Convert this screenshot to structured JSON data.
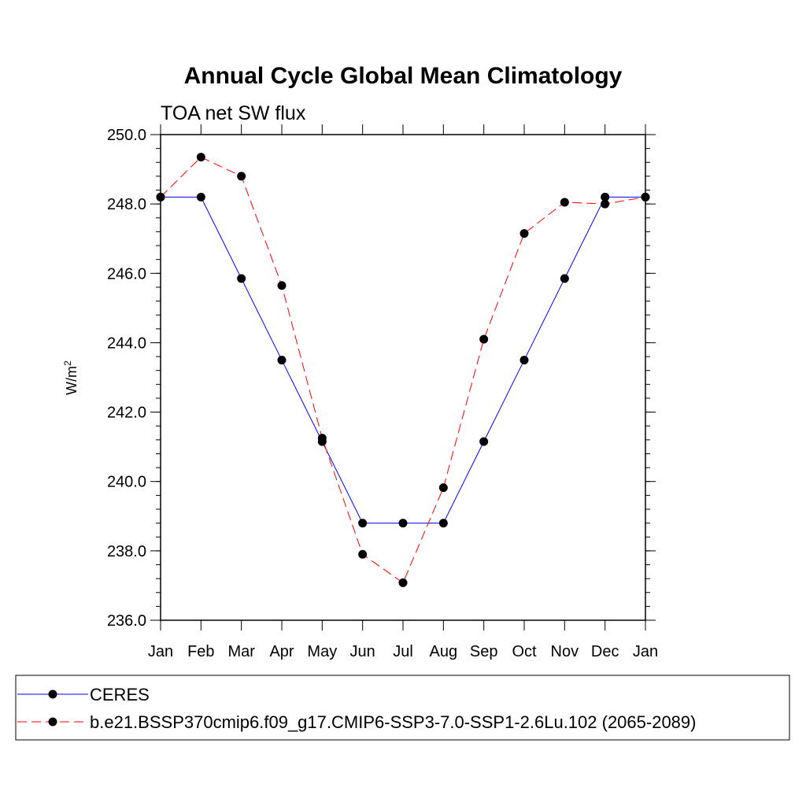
{
  "chart_data": {
    "type": "line",
    "title": "Annual Cycle Global Mean Climatology",
    "subtitle": "TOA net SW flux",
    "xlabel": "",
    "ylabel": "W/m",
    "ylabel_superscript": "2",
    "ylim": [
      236.0,
      250.0
    ],
    "yticks": [
      236.0,
      238.0,
      240.0,
      242.0,
      244.0,
      246.0,
      248.0,
      250.0
    ],
    "ytick_labels": [
      "236.0",
      "238.0",
      "240.0",
      "242.0",
      "244.0",
      "246.0",
      "248.0",
      "250.0"
    ],
    "categories": [
      "Jan",
      "Feb",
      "Mar",
      "Apr",
      "May",
      "Jun",
      "Jul",
      "Aug",
      "Sep",
      "Oct",
      "Nov",
      "Dec",
      "Jan"
    ],
    "series": [
      {
        "name": "CERES",
        "color": "#0000ff",
        "dash": "solid",
        "values": [
          248.2,
          248.2,
          245.85,
          243.5,
          241.15,
          238.8,
          238.8,
          238.8,
          241.15,
          243.5,
          245.85,
          248.2,
          248.2
        ]
      },
      {
        "name": "b.e21.BSSP370cmip6.f09_g17.CMIP6-SSP3-7.0-SSP1-2.6Lu.102 (2065-2089)",
        "color": "#ff0000",
        "dash": "dashed",
        "values": [
          248.2,
          249.35,
          248.8,
          245.65,
          241.25,
          237.9,
          237.08,
          239.82,
          244.1,
          247.15,
          248.05,
          248.0,
          248.2
        ]
      }
    ],
    "marker_color": "#000000",
    "legend_position": "bottom"
  }
}
